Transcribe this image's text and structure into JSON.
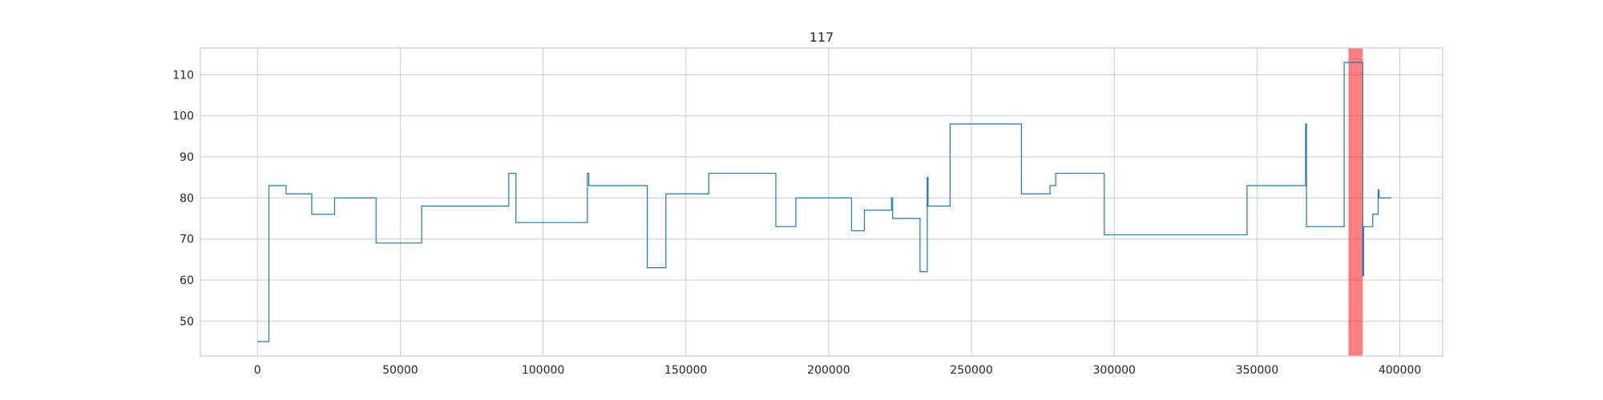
{
  "chart_data": {
    "type": "line",
    "title": "117",
    "xlabel": "",
    "ylabel": "",
    "xlim": [
      -20000,
      415000
    ],
    "ylim": [
      41.5,
      116.5
    ],
    "xticks": [
      0,
      50000,
      100000,
      150000,
      200000,
      250000,
      300000,
      350000,
      400000
    ],
    "yticks": [
      50,
      60,
      70,
      80,
      90,
      100,
      110
    ],
    "grid": true,
    "line_color": "#1f77b4",
    "highlight": {
      "x_start": 382000,
      "x_end": 387000,
      "color": "#ff0000",
      "alpha": 0.5
    },
    "series": [
      {
        "drawstyle": "steps-post",
        "points": [
          [
            0,
            45
          ],
          [
            4000,
            83
          ],
          [
            10000,
            81
          ],
          [
            19000,
            76
          ],
          [
            27000,
            80
          ],
          [
            41500,
            69
          ],
          [
            57500,
            78
          ],
          [
            88000,
            86
          ],
          [
            90500,
            74
          ],
          [
            115500,
            86
          ],
          [
            116000,
            83
          ],
          [
            136500,
            63
          ],
          [
            143000,
            81
          ],
          [
            158000,
            86
          ],
          [
            181500,
            73
          ],
          [
            188500,
            80
          ],
          [
            208000,
            72
          ],
          [
            212500,
            77
          ],
          [
            222000,
            80
          ],
          [
            222400,
            75
          ],
          [
            232000,
            62
          ],
          [
            234500,
            85
          ],
          [
            234800,
            78
          ],
          [
            242500,
            98
          ],
          [
            267500,
            81
          ],
          [
            277500,
            83
          ],
          [
            279500,
            86
          ],
          [
            296500,
            71
          ],
          [
            346500,
            83
          ],
          [
            367000,
            98
          ],
          [
            367300,
            73
          ],
          [
            380500,
            113
          ],
          [
            387000,
            61
          ],
          [
            387300,
            73
          ],
          [
            390500,
            76
          ],
          [
            392400,
            82
          ],
          [
            392700,
            80
          ],
          [
            397000,
            80
          ]
        ]
      }
    ]
  }
}
